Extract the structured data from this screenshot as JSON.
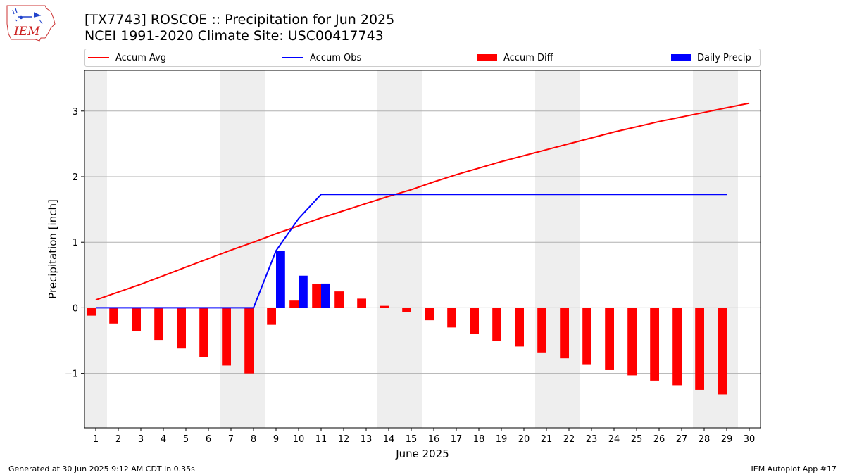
{
  "title_line1": "[TX7743] ROSCOE :: Precipitation for Jun 2025",
  "title_line2": "NCEI 1991-2020 Climate Site: USC00417743",
  "logo_text": "IEM",
  "footer_left": "Generated at 30 Jun 2025 9:12 AM CDT in 0.35s",
  "footer_right": "IEM Autoplot App #17",
  "legend": [
    {
      "label": "Accum Avg",
      "kind": "line",
      "color": "#ff0000"
    },
    {
      "label": "Accum Obs",
      "kind": "line",
      "color": "#0000ff"
    },
    {
      "label": "Accum Diff",
      "kind": "patch",
      "color": "#ff0000"
    },
    {
      "label": "Daily Precip",
      "kind": "patch",
      "color": "#0000ff"
    }
  ],
  "chart_data": {
    "type": "bar",
    "xlabel": "June 2025",
    "ylabel": "Precipitation [inch]",
    "x": [
      1,
      2,
      3,
      4,
      5,
      6,
      7,
      8,
      9,
      10,
      11,
      12,
      13,
      14,
      15,
      16,
      17,
      18,
      19,
      20,
      21,
      22,
      23,
      24,
      25,
      26,
      27,
      28,
      29,
      30
    ],
    "xlim": [
      0.5,
      30.5
    ],
    "ylim": [
      -1.83,
      3.62
    ],
    "yticks": [
      -1,
      0,
      1,
      2,
      3
    ],
    "ytick_labels": [
      "−1",
      "0",
      "1",
      "2",
      "3"
    ],
    "grid": "horizontal",
    "legend_position": "top",
    "weekend_shading": [
      [
        0.5,
        1.5
      ],
      [
        6.5,
        8.5
      ],
      [
        13.5,
        15.5
      ],
      [
        20.5,
        22.5
      ],
      [
        27.5,
        29.5
      ]
    ],
    "series": [
      {
        "name": "Accum Avg",
        "kind": "line",
        "color": "#ff0000",
        "values": [
          0.12,
          0.24,
          0.36,
          0.49,
          0.62,
          0.75,
          0.88,
          1.0,
          1.13,
          1.25,
          1.37,
          1.48,
          1.59,
          1.7,
          1.8,
          1.92,
          2.03,
          2.13,
          2.23,
          2.32,
          2.41,
          2.5,
          2.59,
          2.68,
          2.76,
          2.84,
          2.91,
          2.98,
          3.05,
          3.12
        ]
      },
      {
        "name": "Accum Obs",
        "kind": "line",
        "color": "#0000ff",
        "values": [
          0,
          0,
          0,
          0,
          0,
          0,
          0,
          0,
          0.87,
          1.36,
          1.73,
          1.73,
          1.73,
          1.73,
          1.73,
          1.73,
          1.73,
          1.73,
          1.73,
          1.73,
          1.73,
          1.73,
          1.73,
          1.73,
          1.73,
          1.73,
          1.73,
          1.73,
          1.73,
          null
        ]
      },
      {
        "name": "Accum Diff",
        "kind": "bar",
        "color": "#ff0000",
        "values": [
          -0.12,
          -0.24,
          -0.36,
          -0.49,
          -0.62,
          -0.75,
          -0.88,
          -1.0,
          -0.26,
          0.11,
          0.36,
          0.25,
          0.14,
          0.03,
          -0.07,
          -0.19,
          -0.3,
          -0.4,
          -0.5,
          -0.59,
          -0.68,
          -0.77,
          -0.86,
          -0.95,
          -1.03,
          -1.11,
          -1.18,
          -1.25,
          -1.32,
          null
        ]
      },
      {
        "name": "Daily Precip",
        "kind": "bar",
        "color": "#0000ff",
        "values": [
          0,
          0,
          0,
          0,
          0,
          0,
          0,
          0,
          0.87,
          0.49,
          0.37,
          0,
          0,
          0,
          0,
          0,
          0,
          0,
          0,
          0,
          0,
          0,
          0,
          0,
          0,
          0,
          0,
          0,
          0,
          null
        ]
      }
    ]
  }
}
